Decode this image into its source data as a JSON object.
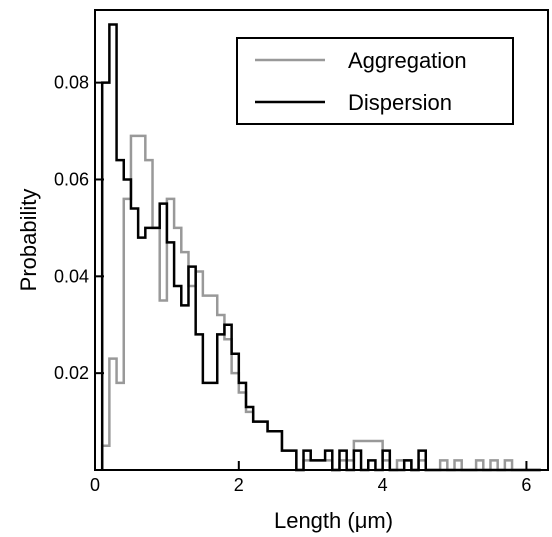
{
  "chart_data": {
    "type": "step-histogram",
    "xlabel": "Length (μm)",
    "ylabel": "Probability",
    "xlim": [
      0,
      6.3
    ],
    "ylim": [
      0,
      0.095
    ],
    "x_ticks": [
      0,
      2,
      4,
      6
    ],
    "y_ticks": [
      0.02,
      0.04,
      0.06,
      0.08
    ],
    "y_tick_labels": [
      "0.02",
      "0.04",
      "0.06",
      "0.08"
    ],
    "bin_width": 0.1,
    "bin_start": 0.1,
    "legend": {
      "position": "top-right",
      "items": [
        "Aggregation",
        "Dispersion"
      ]
    },
    "series": [
      {
        "name": "Aggregation",
        "color": "#999999",
        "values": [
          0.005,
          0.023,
          0.018,
          0.056,
          0.069,
          0.069,
          0.064,
          0.05,
          0.035,
          0.056,
          0.05,
          0.045,
          0.038,
          0.041,
          0.036,
          0.036,
          0.032,
          0.027,
          0.02,
          0.016,
          0.012,
          0.01,
          0.01,
          0.008,
          0.008,
          0.004,
          0.004,
          0.0,
          0.002,
          0.002,
          0.002,
          0.002,
          0.0,
          0.002,
          0.002,
          0.006,
          0.006,
          0.006,
          0.006,
          0.002,
          0.0,
          0.002,
          0.002,
          0.0,
          0.002,
          0.0,
          0.0,
          0.002,
          0.0,
          0.002,
          0.0,
          0.0,
          0.002,
          0.0,
          0.002,
          0.0,
          0.002,
          0.0,
          0.0,
          0.0,
          0.0
        ]
      },
      {
        "name": "Dispersion",
        "color": "#000000",
        "values": [
          0.08,
          0.092,
          0.064,
          0.06,
          0.054,
          0.048,
          0.05,
          0.05,
          0.055,
          0.047,
          0.038,
          0.034,
          0.042,
          0.028,
          0.018,
          0.018,
          0.028,
          0.03,
          0.024,
          0.018,
          0.013,
          0.01,
          0.01,
          0.008,
          0.008,
          0.004,
          0.004,
          0.0,
          0.004,
          0.002,
          0.002,
          0.004,
          0.0,
          0.004,
          0.0,
          0.004,
          0.0,
          0.002,
          0.0,
          0.004,
          0.0,
          0.0,
          0.002,
          0.0,
          0.004,
          0.0,
          0.0,
          0.0,
          0.0,
          0.0,
          0.0,
          0.0,
          0.0,
          0.0,
          0.0,
          0.0,
          0.0,
          0.0,
          0.0,
          0.0,
          0.0
        ]
      }
    ]
  }
}
